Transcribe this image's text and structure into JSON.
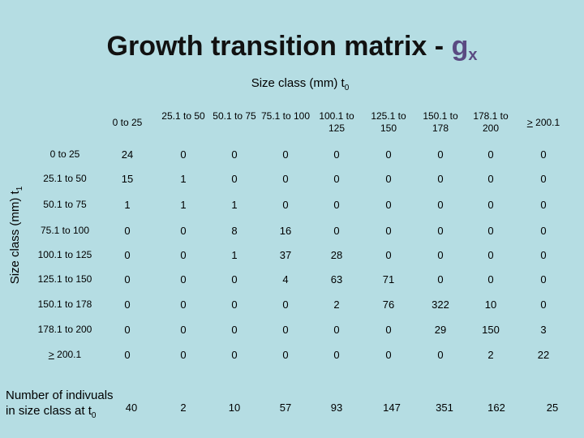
{
  "title": {
    "main": "Growth transition matrix - ",
    "symbol": "g",
    "subscript": "x"
  },
  "column_axis": {
    "label": "Size class (mm) t",
    "subscript": "0"
  },
  "row_axis": {
    "label": "Size class (mm) t",
    "subscript": "1"
  },
  "column_headers": [
    "0 to 25",
    "25.1 to 50",
    "50.1 to 75",
    "75.1 to 100",
    "100.1 to 125",
    "125.1 to 150",
    "150.1 to 178",
    "178.1 to 200",
    "> 200.1"
  ],
  "row_headers": [
    "0 to 25",
    "25.1 to 50",
    "50.1 to 75",
    "75.1 to 100",
    "100.1 to 125",
    "125.1 to 150",
    "150.1 to 178",
    "178.1 to 200",
    "> 200.1"
  ],
  "matrix": [
    [
      "24",
      "0",
      "0",
      "0",
      "0",
      "0",
      "0",
      "0",
      "0"
    ],
    [
      "15",
      "1",
      "0",
      "0",
      "0",
      "0",
      "0",
      "0",
      "0"
    ],
    [
      "1",
      "1",
      "1",
      "0",
      "0",
      "0",
      "0",
      "0",
      "0"
    ],
    [
      "0",
      "0",
      "8",
      "16",
      "0",
      "0",
      "0",
      "0",
      "0"
    ],
    [
      "0",
      "0",
      "1",
      "37",
      "28",
      "0",
      "0",
      "0",
      "0"
    ],
    [
      "0",
      "0",
      "0",
      "4",
      "63",
      "71",
      "0",
      "0",
      "0"
    ],
    [
      "0",
      "0",
      "0",
      "0",
      "2",
      "76",
      "322",
      "10",
      "0"
    ],
    [
      "0",
      "0",
      "0",
      "0",
      "0",
      "0",
      "29",
      "150",
      "3"
    ],
    [
      "0",
      "0",
      "0",
      "0",
      "0",
      "0",
      "0",
      "2",
      "22"
    ]
  ],
  "footer": {
    "line1": "Number of indivuals",
    "line2": "in size class at t",
    "subscript": "0",
    "totals": [
      "40",
      "2",
      "10",
      "57",
      "93",
      "147",
      "351",
      "162",
      "25"
    ]
  }
}
